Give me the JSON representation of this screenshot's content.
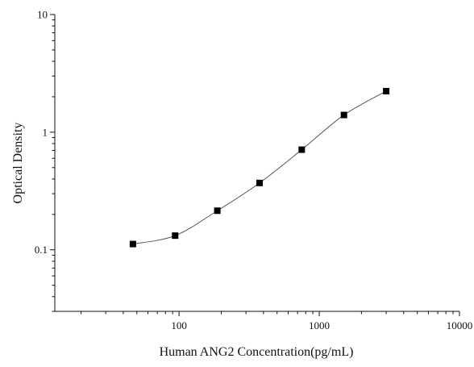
{
  "chart_data": {
    "type": "scatter",
    "title": "",
    "xlabel": "Human ANG2 Concentration(pg/mL)",
    "ylabel": "Optical Density",
    "x_scale": "log",
    "y_scale": "log",
    "xlim": [
      13,
      10000
    ],
    "ylim": [
      0.03,
      10
    ],
    "x_ticks": [
      100,
      1000,
      10000
    ],
    "x_tick_labels": [
      "100",
      "1000",
      "10000"
    ],
    "y_ticks": [
      0.1,
      1,
      10
    ],
    "y_tick_labels": [
      "0.1",
      "1",
      "10"
    ],
    "grid": false,
    "legend": "none",
    "series": [
      {
        "marker": "square",
        "x": [
          46.88,
          93.75,
          187.5,
          375,
          750,
          1500,
          3000
        ],
        "y": [
          0.112,
          0.132,
          0.215,
          0.37,
          0.71,
          1.4,
          2.23
        ]
      }
    ],
    "fit_curve": {
      "style": "smooth line through points",
      "color": "#555555"
    },
    "colors": {
      "axis": "#111111",
      "marker": "#000000",
      "curve": "#555555"
    }
  }
}
